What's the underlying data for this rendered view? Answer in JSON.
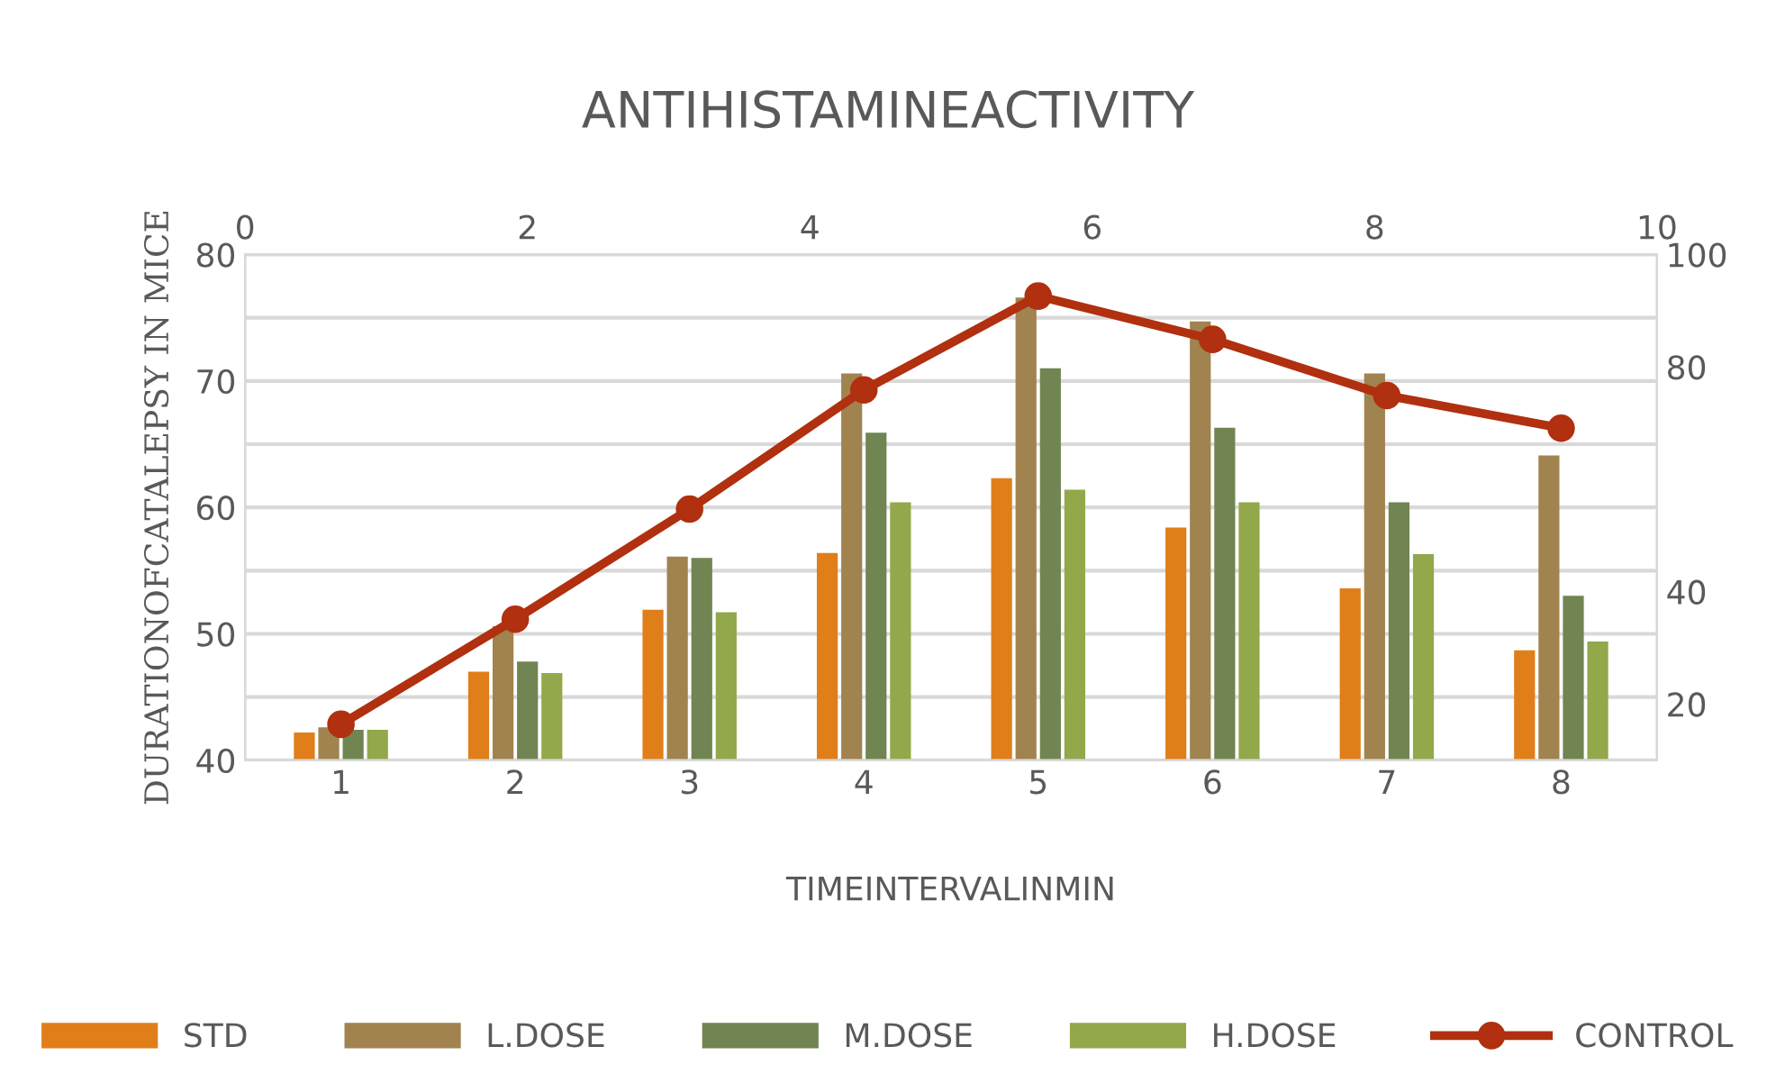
{
  "chart_data": {
    "type": "bar",
    "title": "ANTIHISTAMINEACTIVITY",
    "xlabel": "TIMEINTERVALINMIN",
    "ylabel": "DURATIONOFCATALEPSY IN MICE",
    "categories": [
      "1",
      "2",
      "3",
      "4",
      "5",
      "6",
      "7",
      "8"
    ],
    "series": [
      {
        "name": "STD",
        "color": "#e07e1a",
        "values": [
          42.2,
          47.0,
          51.9,
          56.4,
          62.3,
          58.4,
          53.6,
          48.7
        ]
      },
      {
        "name": "L.DOSE",
        "color": "#a0834f",
        "values": [
          42.6,
          50.6,
          56.1,
          70.6,
          76.6,
          74.7,
          70.6,
          64.1
        ]
      },
      {
        "name": "M.DOSE",
        "color": "#708552",
        "values": [
          42.4,
          47.8,
          56.0,
          65.9,
          71.0,
          66.3,
          60.4,
          53.0
        ]
      },
      {
        "name": "H.DOSE",
        "color": "#93a84a",
        "values": [
          42.4,
          46.9,
          51.7,
          60.4,
          61.4,
          60.4,
          56.3,
          49.4
        ]
      },
      {
        "name": "CONTROL",
        "color": "#b0300f",
        "type": "line",
        "axis": "y2",
        "marker": "circle",
        "values": [
          16.4,
          35.1,
          54.7,
          75.9,
          92.6,
          84.9,
          74.9,
          69.1
        ]
      }
    ],
    "ylim": [
      40,
      80
    ],
    "yticks": [
      40,
      {
        "value": 45,
        "label": null
      },
      50,
      {
        "value": 55,
        "label": null
      },
      60,
      {
        "value": 65,
        "label": null
      },
      70,
      {
        "value": 75,
        "label": null
      },
      80
    ],
    "y2lim": [
      10,
      100
    ],
    "y2ticks": [
      20,
      40,
      80,
      100
    ],
    "x2lim": [
      0,
      10
    ],
    "x2ticks": [
      0,
      2,
      4,
      6,
      8,
      10
    ],
    "grid": "y",
    "legend": "bottom"
  }
}
